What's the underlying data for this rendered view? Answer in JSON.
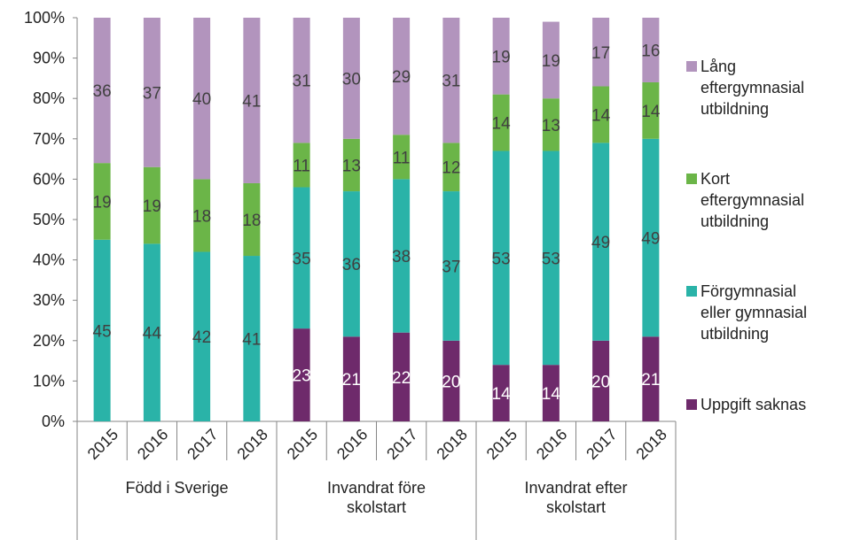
{
  "chart_data": {
    "type": "bar",
    "stacked": true,
    "percent": true,
    "groups": [
      {
        "label": "Född i Sverige",
        "categories": [
          "2015",
          "2016",
          "2017",
          "2018"
        ]
      },
      {
        "label": "Invandrat före skolstart",
        "categories": [
          "2015",
          "2016",
          "2017",
          "2018"
        ]
      },
      {
        "label": "Invandrat efter skolstart",
        "categories": [
          "2015",
          "2016",
          "2017",
          "2018"
        ]
      }
    ],
    "series": [
      {
        "name": "Uppgift saknas",
        "color": "#6e2a6b",
        "label_color": "#ffffff",
        "values": [
          0,
          0,
          0,
          0,
          23,
          21,
          22,
          20,
          14,
          14,
          20,
          21
        ]
      },
      {
        "name": "Förgymnasial eller gymnasial utbildning",
        "color": "#2ab3a8",
        "label_color": "#404040",
        "values": [
          45,
          44,
          42,
          41,
          35,
          36,
          38,
          37,
          53,
          53,
          49,
          49
        ]
      },
      {
        "name": "Kort eftergymnasial utbildning",
        "color": "#6bb548",
        "label_color": "#404040",
        "values": [
          19,
          19,
          18,
          18,
          11,
          13,
          11,
          12,
          14,
          13,
          14,
          14
        ]
      },
      {
        "name": "Lång eftergymnasial utbildning",
        "color": "#b294bd",
        "label_color": "#404040",
        "values": [
          36,
          37,
          40,
          41,
          31,
          30,
          29,
          31,
          19,
          19,
          17,
          16
        ]
      }
    ],
    "ylim": [
      0,
      100
    ],
    "yticks": [
      "0%",
      "10%",
      "20%",
      "30%",
      "40%",
      "50%",
      "60%",
      "70%",
      "80%",
      "90%",
      "100%"
    ],
    "legend": {
      "placement": "right",
      "items": [
        {
          "series": 3,
          "lines": [
            "Lång",
            "eftergymnasial",
            "utbildning"
          ]
        },
        {
          "series": 2,
          "lines": [
            "Kort",
            "eftergymnasial",
            "utbildning"
          ]
        },
        {
          "series": 1,
          "lines": [
            "Förgymnasial",
            "eller gymnasial",
            "utbildning"
          ]
        },
        {
          "series": 0,
          "lines": [
            "Uppgift saknas"
          ]
        }
      ]
    },
    "grid": false
  }
}
